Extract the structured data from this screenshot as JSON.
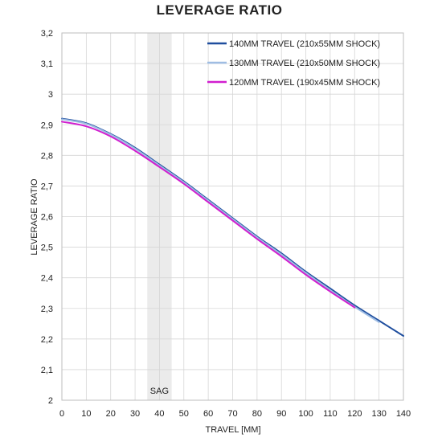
{
  "chart_data": {
    "type": "line",
    "title": "LEVERAGE RATIO",
    "xlabel": "TRAVEL [MM]",
    "ylabel": "LEVERAGE RATIO",
    "xlim": [
      0,
      140
    ],
    "ylim": [
      2,
      3.2
    ],
    "x_ticks": [
      "0",
      "10",
      "20",
      "30",
      "40",
      "50",
      "60",
      "70",
      "80",
      "90",
      "100",
      "110",
      "120",
      "130",
      "140"
    ],
    "y_ticks": [
      "2",
      "2,1",
      "2,2",
      "2,3",
      "2,4",
      "2,5",
      "2,6",
      "2,7",
      "2,8",
      "2,9",
      "3",
      "3,1",
      "3,2"
    ],
    "grid": true,
    "legend_position": "top-right",
    "sag": {
      "label": "SAG",
      "from": 35,
      "to": 45,
      "color": "#ebebeb"
    },
    "series": [
      {
        "name": "140MM TRAVEL (210x55MM SHOCK)",
        "color": "#1f4e9e",
        "x": [
          0,
          10,
          20,
          30,
          40,
          50,
          60,
          70,
          80,
          90,
          100,
          110,
          120,
          130,
          140
        ],
        "y": [
          2.92,
          2.905,
          2.87,
          2.825,
          2.77,
          2.715,
          2.655,
          2.595,
          2.535,
          2.48,
          2.42,
          2.365,
          2.31,
          2.26,
          2.21
        ]
      },
      {
        "name": "130MM TRAVEL (210x50MM SHOCK)",
        "color": "#9fbde3",
        "x": [
          0,
          10,
          20,
          30,
          40,
          50,
          60,
          70,
          80,
          90,
          100,
          110,
          120,
          130
        ],
        "y": [
          2.918,
          2.903,
          2.868,
          2.822,
          2.767,
          2.712,
          2.652,
          2.592,
          2.532,
          2.476,
          2.416,
          2.36,
          2.305,
          2.255
        ]
      },
      {
        "name": "120MM TRAVEL (190x45MM SHOCK)",
        "color": "#d11fcf",
        "x": [
          0,
          10,
          20,
          30,
          40,
          50,
          60,
          70,
          80,
          90,
          100,
          110,
          120
        ],
        "y": [
          2.91,
          2.895,
          2.862,
          2.815,
          2.762,
          2.707,
          2.647,
          2.587,
          2.527,
          2.47,
          2.41,
          2.355,
          2.303
        ]
      }
    ]
  }
}
